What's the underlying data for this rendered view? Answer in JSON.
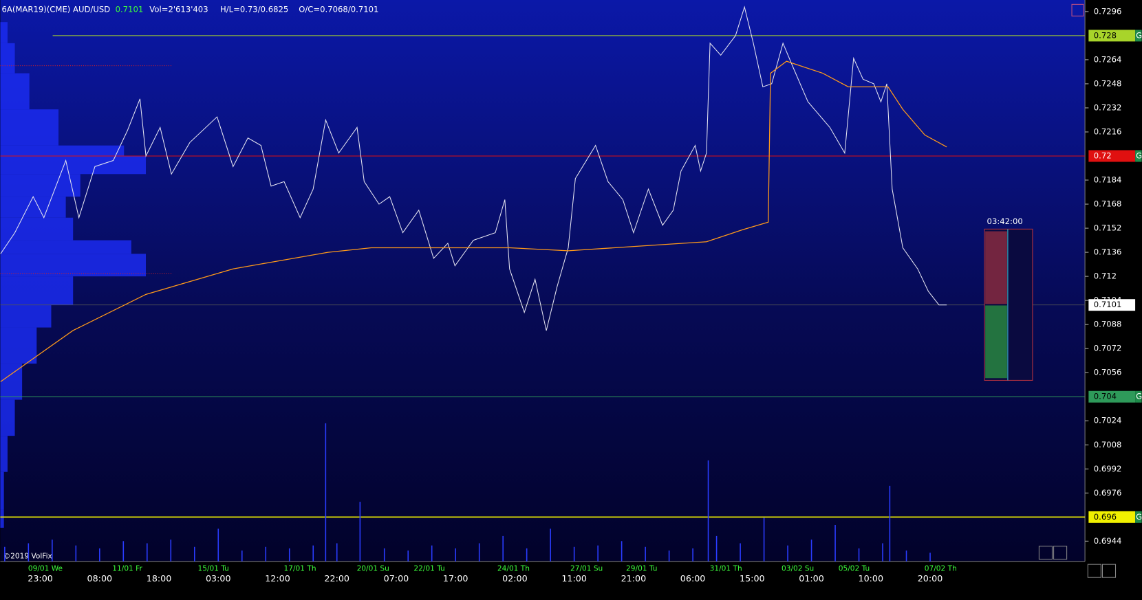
{
  "chart_data": {
    "type": "line",
    "header": {
      "symbol": "6A(MAR19)(CME) AUD/USD",
      "last": "0.7101",
      "volume": "Vol=2'613'403",
      "high_low": "H/L=0.73/0.6825",
      "open_close": "O/C=0.7068/0.7101"
    },
    "copyright": "©2019 VolFix",
    "widget_time": "03:42:00",
    "level_tag": "G",
    "ylim": [
      0.69305,
      0.73037
    ],
    "yticks": [
      0.7296,
      0.7264,
      0.7248,
      0.7232,
      0.7216,
      0.7184,
      0.7168,
      0.7152,
      0.7136,
      0.712,
      0.7104,
      0.7088,
      0.7072,
      0.7056,
      0.7024,
      0.7008,
      0.6992,
      0.6976,
      0.6944
    ],
    "xlim": [
      -6.75,
      176.1
    ],
    "xticks": [
      {
        "value": 0,
        "label": "23:00"
      },
      {
        "value": 10,
        "label": "08:00"
      },
      {
        "value": 20,
        "label": "18:00"
      },
      {
        "value": 30,
        "label": "03:00"
      },
      {
        "value": 40,
        "label": "12:00"
      },
      {
        "value": 50,
        "label": "22:00"
      },
      {
        "value": 60,
        "label": "07:00"
      },
      {
        "value": 70,
        "label": "17:00"
      },
      {
        "value": 80,
        "label": "02:00"
      },
      {
        "value": 90,
        "label": "11:00"
      },
      {
        "value": 100,
        "label": "21:00"
      },
      {
        "value": 110,
        "label": "06:00"
      },
      {
        "value": 120,
        "label": "15:00"
      },
      {
        "value": 130,
        "label": "01:00"
      },
      {
        "value": 140,
        "label": "10:00"
      },
      {
        "value": 150,
        "label": "20:00"
      }
    ],
    "date_labels": [
      {
        "value": 0.4,
        "label": "09/01 We"
      },
      {
        "value": 14.6,
        "label": "11/01 Fr"
      },
      {
        "value": 29,
        "label": "15/01 Tu"
      },
      {
        "value": 43.5,
        "label": "17/01 Th"
      },
      {
        "value": 55.8,
        "label": "20/01 Su"
      },
      {
        "value": 65.4,
        "label": "22/01 Tu"
      },
      {
        "value": 79.5,
        "label": "24/01 Th"
      },
      {
        "value": 91.8,
        "label": "27/01 Su"
      },
      {
        "value": 101.2,
        "label": "29/01 Tu"
      },
      {
        "value": 115.3,
        "label": "31/01 Th"
      },
      {
        "value": 127.4,
        "label": "03/02 Su"
      },
      {
        "value": 137,
        "label": "05/02 Tu"
      },
      {
        "value": 151.5,
        "label": "07/02 Th"
      }
    ],
    "series": [
      {
        "name": "price",
        "color": "#e4e4f0",
        "x": [
          -6.7,
          -4.3,
          -1.2,
          0.6,
          4.3,
          6.5,
          9.2,
          12.3,
          14.7,
          16.8,
          17.8,
          20.2,
          22.1,
          25.2,
          29.8,
          32.5,
          35.0,
          37.2,
          38.9,
          41.1,
          43.8,
          46.0,
          48.1,
          50.3,
          53.4,
          54.6,
          57.1,
          58.9,
          61.1,
          63.8,
          66.3,
          68.7,
          69.9,
          73.0,
          76.7,
          78.3,
          79.1,
          81.6,
          83.4,
          85.3,
          87.1,
          89.0,
          90.2,
          93.6,
          95.7,
          98.2,
          100.0,
          102.5,
          104.9,
          106.7,
          108.0,
          110.4,
          111.3,
          112.3,
          112.9,
          114.7,
          117.2,
          118.7,
          120.2,
          121.8,
          123.3,
          125.2,
          127.0,
          129.4,
          133.1,
          135.6,
          137.1,
          138.7,
          140.5,
          141.7,
          142.7,
          143.6,
          145.4,
          147.9,
          149.7,
          151.5,
          152.8
        ],
        "values": [
          0.7135,
          0.7149,
          0.7173,
          0.7159,
          0.7197,
          0.7159,
          0.7193,
          0.7197,
          0.7217,
          0.7238,
          0.72,
          0.7219,
          0.7188,
          0.7209,
          0.7226,
          0.7193,
          0.7212,
          0.7207,
          0.718,
          0.7183,
          0.7159,
          0.7178,
          0.7224,
          0.7202,
          0.7219,
          0.7183,
          0.7168,
          0.7173,
          0.7149,
          0.7164,
          0.7132,
          0.7142,
          0.7127,
          0.7144,
          0.7149,
          0.7171,
          0.7125,
          0.7096,
          0.7118,
          0.7084,
          0.7113,
          0.7139,
          0.7185,
          0.7207,
          0.7183,
          0.7171,
          0.7149,
          0.7178,
          0.7154,
          0.7164,
          0.719,
          0.7207,
          0.719,
          0.7202,
          0.7275,
          0.7267,
          0.728,
          0.7299,
          0.7275,
          0.7246,
          0.7248,
          0.7275,
          0.7258,
          0.7236,
          0.7219,
          0.7202,
          0.7265,
          0.7251,
          0.7248,
          0.7236,
          0.7248,
          0.7178,
          0.7139,
          0.7125,
          0.711,
          0.7101,
          0.7101
        ]
      },
      {
        "name": "vwap",
        "color": "#ff9a1a",
        "x": [
          -6.7,
          -0.6,
          5.5,
          17.8,
          32.5,
          48.5,
          55.8,
          79.1,
          89.0,
          112.3,
          118.4,
          122.7,
          123.1,
          125.8,
          131.9,
          136.2,
          142.9,
          145.4,
          149.1,
          152.8
        ],
        "values": [
          0.705,
          0.7067,
          0.7084,
          0.7108,
          0.7125,
          0.7136,
          0.7139,
          0.7139,
          0.7137,
          0.7143,
          0.7151,
          0.7156,
          0.7255,
          0.7263,
          0.7255,
          0.7246,
          0.7246,
          0.7231,
          0.7214,
          0.7206
        ]
      }
    ],
    "levels": {
      "values": [
        0.728,
        0.72,
        0.704,
        0.696
      ],
      "colors": [
        "#a8d42a",
        "#e01010",
        "#2e9a5a",
        "#f0f000"
      ]
    },
    "last_price": 0.7101,
    "value_area": [
      0.7122,
      0.726
    ],
    "profile": {
      "color": "#1b2cf0",
      "prices": [
        0.7289,
        0.7275,
        0.7255,
        0.7231,
        0.7207,
        0.72,
        0.7188,
        0.7173,
        0.7159,
        0.7144,
        0.7135,
        0.712,
        0.711,
        0.7101,
        0.7086,
        0.7062,
        0.7038,
        0.7014,
        0.699,
        0.6965
      ],
      "values": [
        10,
        20,
        40,
        80,
        170,
        200,
        110,
        90,
        100,
        180,
        200,
        100,
        100,
        70,
        50,
        30,
        20,
        10,
        5,
        5
      ]
    },
    "volume": {
      "color": "#2a3cff",
      "x": [
        -6,
        -2,
        2,
        6,
        10,
        14,
        18,
        22,
        26,
        30,
        34,
        38,
        42,
        46,
        48.1,
        50,
        53.9,
        58,
        62,
        66,
        70,
        74,
        78,
        82,
        86,
        90,
        94,
        98,
        102,
        106,
        110,
        112.6,
        114,
        118,
        122,
        126,
        130,
        134,
        138,
        142,
        143.2,
        146,
        150
      ],
      "values": [
        20,
        25,
        30,
        22,
        18,
        28,
        25,
        30,
        20,
        45,
        15,
        20,
        18,
        22,
        190,
        25,
        82,
        18,
        15,
        22,
        18,
        25,
        35,
        18,
        45,
        20,
        22,
        28,
        20,
        15,
        18,
        139,
        35,
        25,
        60,
        22,
        30,
        50,
        18,
        25,
        104,
        15,
        12
      ]
    }
  }
}
